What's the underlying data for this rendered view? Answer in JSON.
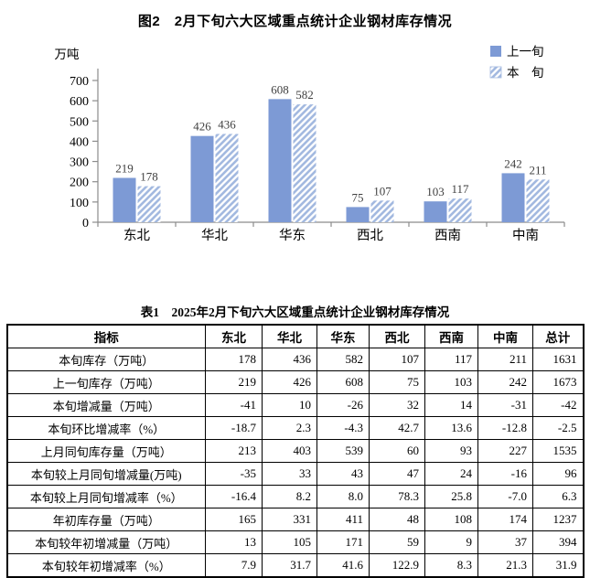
{
  "chart_data": {
    "type": "bar",
    "title": "图2　2月下旬六大区域重点统计企业钢材库存情况",
    "ylabel": "万吨",
    "xlabel": "",
    "categories": [
      "东北",
      "华北",
      "华东",
      "西北",
      "西南",
      "中南"
    ],
    "series": [
      {
        "name": "上一旬",
        "values": [
          219,
          426,
          608,
          75,
          103,
          242
        ]
      },
      {
        "name": "本　旬",
        "values": [
          178,
          436,
          582,
          107,
          117,
          211
        ]
      }
    ],
    "ylim": [
      0,
      700
    ],
    "yticks": [
      0,
      100,
      200,
      300,
      400,
      500,
      600,
      700
    ],
    "grid": false,
    "legend_position": "top-right"
  },
  "chart_style": {
    "bar_solid_color": "#7d9ad5",
    "hatch_stripe_color": "#a3b9e0",
    "axis_color": "#8c8c8c",
    "label_color": "#404040",
    "text_color": "#000000"
  },
  "table": {
    "title": "表1　2025年2月下旬六大区域重点统计企业钢材库存情况",
    "columns": [
      "指标",
      "东北",
      "华北",
      "华东",
      "西北",
      "西南",
      "中南",
      "总计"
    ],
    "rows": [
      {
        "label": "本旬库存（万吨）",
        "values": [
          "178",
          "436",
          "582",
          "107",
          "117",
          "211",
          "1631"
        ]
      },
      {
        "label": "上一旬库存（万吨）",
        "values": [
          "219",
          "426",
          "608",
          "75",
          "103",
          "242",
          "1673"
        ]
      },
      {
        "label": "本旬增减量（万吨）",
        "values": [
          "-41",
          "10",
          "-26",
          "32",
          "14",
          "-31",
          "-42"
        ]
      },
      {
        "label": "本旬环比增减率（%）",
        "values": [
          "-18.7",
          "2.3",
          "-4.3",
          "42.7",
          "13.6",
          "-12.8",
          "-2.5"
        ]
      },
      {
        "label": "上月同旬库存量（万吨）",
        "values": [
          "213",
          "403",
          "539",
          "60",
          "93",
          "227",
          "1535"
        ]
      },
      {
        "label": "本旬较上月同旬增减量(万吨)",
        "values": [
          "-35",
          "33",
          "43",
          "47",
          "24",
          "-16",
          "96"
        ]
      },
      {
        "label": "本旬较上月同旬增减率（%）",
        "values": [
          "-16.4",
          "8.2",
          "8.0",
          "78.3",
          "25.8",
          "-7.0",
          "6.3"
        ]
      },
      {
        "label": "年初库存量（万吨）",
        "values": [
          "165",
          "331",
          "411",
          "48",
          "108",
          "174",
          "1237"
        ]
      },
      {
        "label": "本旬较年初增减量（万吨）",
        "values": [
          "13",
          "105",
          "171",
          "59",
          "9",
          "37",
          "394"
        ]
      },
      {
        "label": "本旬较年初增减率（%）",
        "values": [
          "7.9",
          "31.7",
          "41.6",
          "122.9",
          "8.3",
          "21.3",
          "31.9"
        ]
      }
    ]
  }
}
